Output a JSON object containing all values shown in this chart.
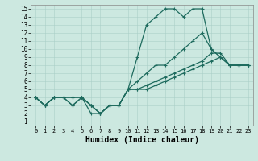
{
  "background_color": "#cce8e0",
  "grid_color": "#aacfc8",
  "line_color": "#1e6b5e",
  "line_width": 0.9,
  "marker": "+",
  "marker_size": 3,
  "marker_edge_width": 0.8,
  "xlabel": "Humidex (Indice chaleur)",
  "xlabel_fontsize": 7,
  "ytick_fontsize": 5.5,
  "xtick_fontsize": 5,
  "xlim": [
    -0.5,
    23.5
  ],
  "ylim": [
    0.5,
    15.5
  ],
  "yticks": [
    1,
    2,
    3,
    4,
    5,
    6,
    7,
    8,
    9,
    10,
    11,
    12,
    13,
    14,
    15
  ],
  "xticks": [
    0,
    1,
    2,
    3,
    4,
    5,
    6,
    7,
    8,
    9,
    10,
    11,
    12,
    13,
    14,
    15,
    16,
    17,
    18,
    19,
    20,
    21,
    22,
    23
  ],
  "lines": [
    {
      "x": [
        0,
        1,
        2,
        3,
        4,
        5,
        6,
        7,
        8,
        9,
        10,
        11,
        12,
        13,
        14,
        15,
        16,
        17,
        18,
        19,
        20,
        21,
        22,
        23
      ],
      "y": [
        4,
        3,
        4,
        4,
        4,
        4,
        2,
        2,
        3,
        3,
        5,
        9,
        13,
        14,
        15,
        15,
        14,
        15,
        15,
        10,
        9,
        8,
        8,
        8
      ]
    },
    {
      "x": [
        0,
        1,
        2,
        3,
        4,
        5,
        6,
        7,
        8,
        9,
        10,
        11,
        12,
        13,
        14,
        15,
        16,
        17,
        18,
        19,
        20,
        21,
        22,
        23
      ],
      "y": [
        4,
        3,
        4,
        4,
        4,
        4,
        3,
        2,
        3,
        3,
        5,
        6,
        7,
        8,
        8,
        9,
        10,
        11,
        12,
        10,
        9,
        8,
        8,
        8
      ]
    },
    {
      "x": [
        0,
        1,
        2,
        3,
        4,
        5,
        6,
        7,
        8,
        9,
        10,
        11,
        12,
        13,
        14,
        15,
        16,
        17,
        18,
        19,
        20,
        21,
        22,
        23
      ],
      "y": [
        4,
        3,
        4,
        4,
        3,
        4,
        3,
        2,
        3,
        3,
        5,
        5,
        5.5,
        6,
        6.5,
        7,
        7.5,
        8,
        8.5,
        9.5,
        9.5,
        8,
        8,
        8
      ]
    },
    {
      "x": [
        0,
        1,
        2,
        3,
        4,
        5,
        6,
        7,
        8,
        9,
        10,
        11,
        12,
        13,
        14,
        15,
        16,
        17,
        18,
        19,
        20,
        21,
        22,
        23
      ],
      "y": [
        4,
        3,
        4,
        4,
        3,
        4,
        3,
        2,
        3,
        3,
        5,
        5,
        5,
        5.5,
        6,
        6.5,
        7,
        7.5,
        8,
        8.5,
        9,
        8,
        8,
        8
      ]
    }
  ]
}
